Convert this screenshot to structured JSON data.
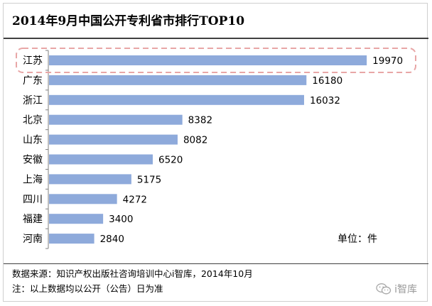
{
  "header": {
    "title": "2014年9月中国公开专利省市排行TOP10"
  },
  "footer": {
    "source": "数据来源：知识产权出版社咨询培训中心i智库，2014年10月",
    "remark": "注：以上数据均以公开（公告）日为准",
    "watermark": "i智库"
  },
  "colors": {
    "bar": "#8eaadb",
    "highlight_border": "#e8a6a6"
  },
  "chart_data": {
    "type": "bar",
    "orientation": "horizontal",
    "categories": [
      "江苏",
      "广东",
      "浙江",
      "北京",
      "山东",
      "安徽",
      "上海",
      "四川",
      "福建",
      "河南"
    ],
    "values": [
      19970,
      16180,
      16032,
      8382,
      8082,
      6520,
      5175,
      4272,
      3400,
      2840
    ],
    "xlim": [
      0,
      23000
    ],
    "unit_label": "单位：件",
    "highlighted_category": "江苏",
    "grid": false,
    "legend": "none"
  }
}
